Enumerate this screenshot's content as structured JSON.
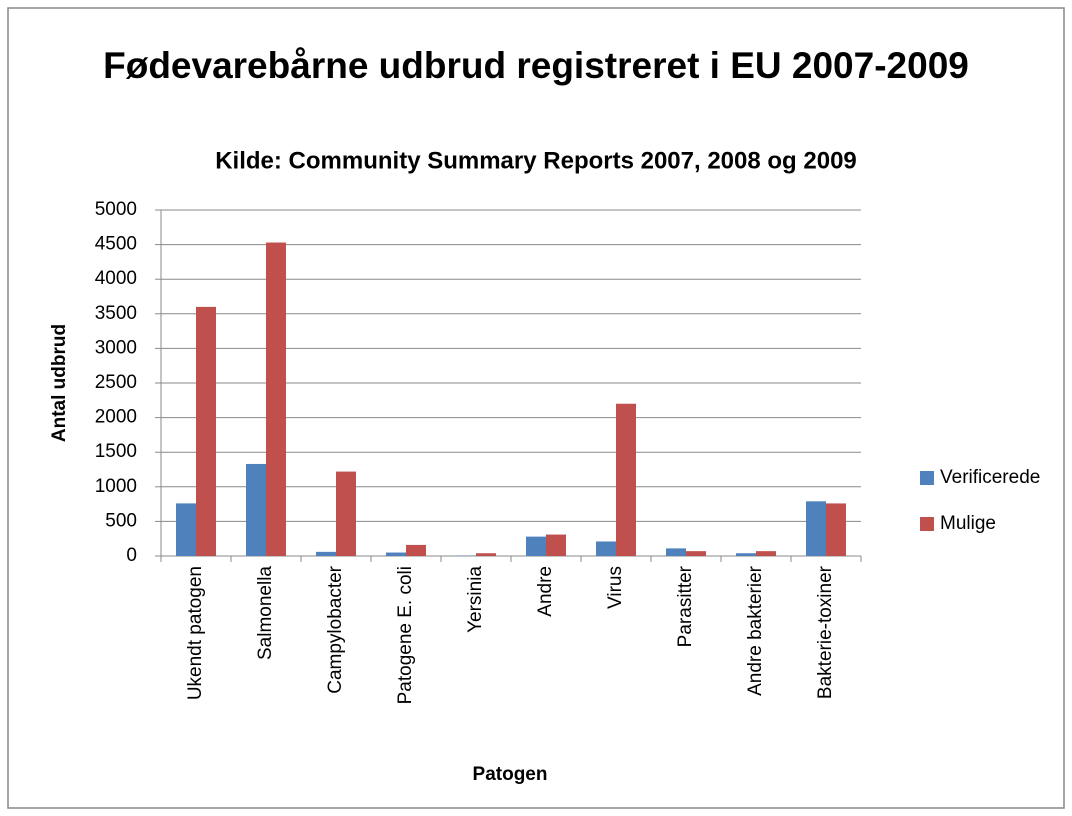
{
  "chart_data": {
    "type": "bar",
    "title": "Fødevarebårne udbrud registreret i EU 2007-2009",
    "subtitle": "Kilde: Community Summary Reports 2007, 2008 og 2009",
    "xlabel": "Patogen",
    "ylabel": "Antal udbrud",
    "categories": [
      "Ukendt patogen",
      "Salmonella",
      "Campylobacter",
      "Patogene E. coli",
      "Yersinia",
      "Andre",
      "Virus",
      "Parasitter",
      "Andre bakterier",
      "Bakterie-toxiner"
    ],
    "series": [
      {
        "name": "Verificerede",
        "color": "#4f81bd",
        "values": [
          760,
          1330,
          60,
          50,
          5,
          280,
          210,
          110,
          40,
          790
        ]
      },
      {
        "name": "Mulige",
        "color": "#c0504d",
        "values": [
          3600,
          4530,
          1220,
          160,
          40,
          310,
          2200,
          70,
          70,
          760
        ]
      }
    ],
    "ylim": [
      0,
      5000
    ],
    "yticks": [
      0,
      500,
      1000,
      1500,
      2000,
      2500,
      3000,
      3500,
      4000,
      4500,
      5000
    ],
    "grid": true,
    "legend": "right"
  }
}
